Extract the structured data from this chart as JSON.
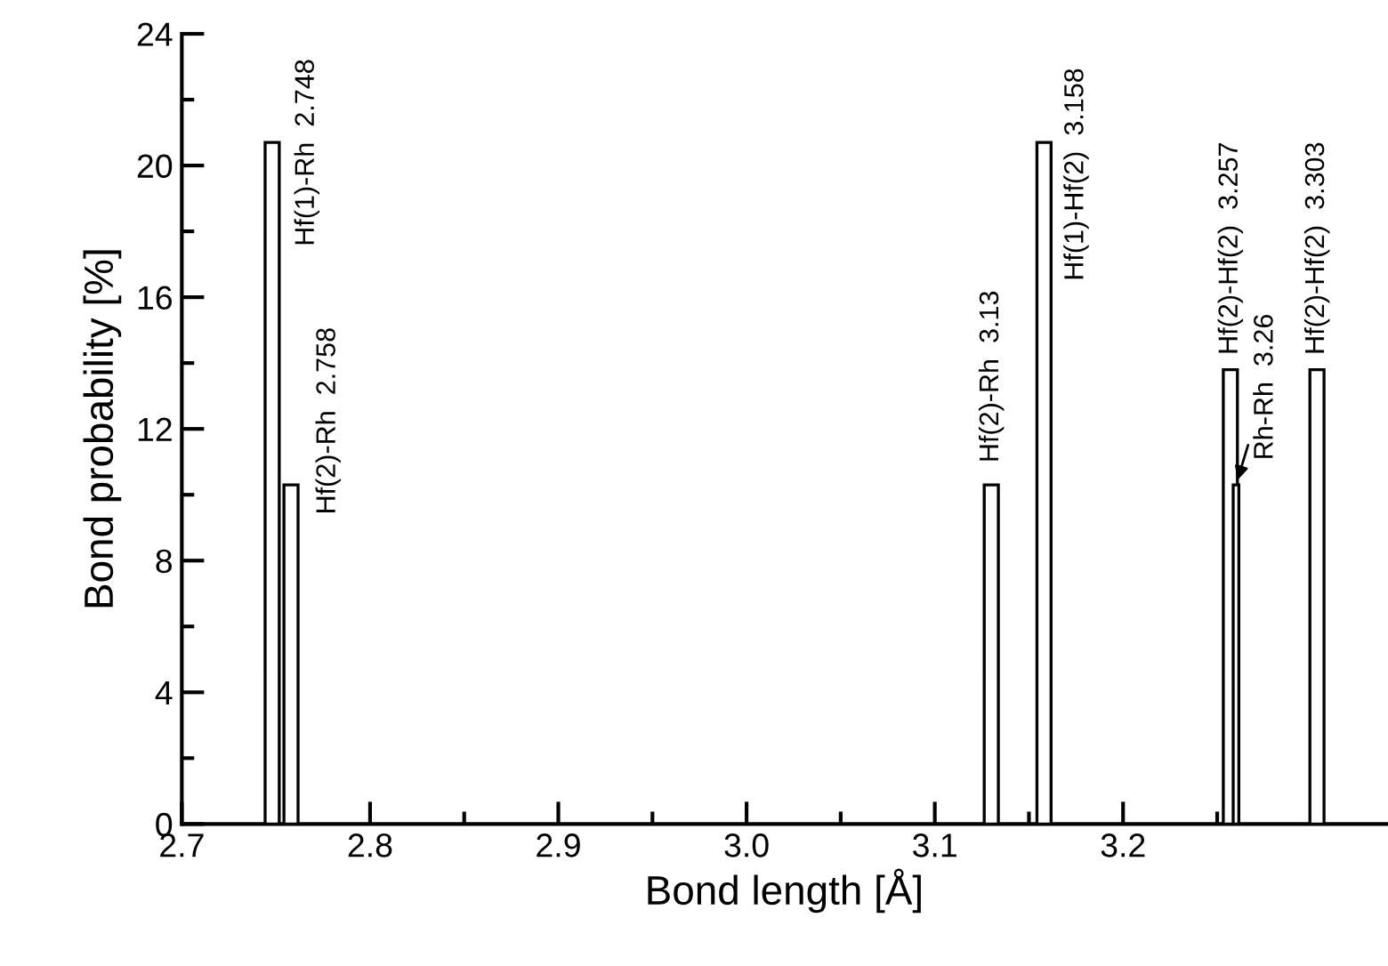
{
  "chart_data": {
    "type": "bar",
    "xlabel": "Bond length [Å]",
    "ylabel": "Bond probability [%]",
    "x": [
      2.748,
      2.758,
      3.13,
      3.158,
      3.257,
      3.26,
      3.303
    ],
    "values": [
      20.7,
      10.3,
      10.3,
      20.7,
      13.8,
      10.3,
      13.8
    ],
    "color": "#ffffff",
    "xlim": [
      2.7,
      3.34
    ],
    "xticks": [
      2.7,
      {
        "value": 2.75,
        "label": null
      },
      2.8,
      {
        "value": 2.85,
        "label": null
      },
      2.9,
      {
        "value": 2.95,
        "label": null
      },
      {
        "value": 3.0,
        "label": "3.0"
      },
      {
        "value": 3.05,
        "label": null
      },
      3.1,
      {
        "value": 3.15,
        "label": null
      },
      3.2,
      {
        "value": 3.25,
        "label": null
      },
      {
        "value": 3.3,
        "label": null
      }
    ],
    "ylim": [
      0,
      24
    ],
    "yticks": [
      0,
      {
        "value": 2,
        "label": null
      },
      4,
      {
        "value": 6,
        "label": null
      },
      8,
      {
        "value": 10,
        "label": null
      },
      12,
      {
        "value": 14,
        "label": null
      },
      16,
      {
        "value": 18,
        "label": null
      },
      20,
      {
        "value": 22,
        "label": null
      },
      24
    ],
    "grid": false,
    "annotations": [
      {
        "text": "Hf(1)-Rh  2.748",
        "x": 2.748,
        "y": 20.7
      },
      {
        "text": "Hf(2)-Rh  2.758",
        "x": 2.758,
        "y": 10.3
      },
      {
        "text": "Hf(2)-Rh  3.13",
        "x": 3.13,
        "y": 10.3
      },
      {
        "text": "Hf(1)-Hf(2)  3.158",
        "x": 3.158,
        "y": 20.7
      },
      {
        "text": "Hf(2)-Hf(2)  3.257",
        "x": 3.257,
        "y": 13.8
      },
      {
        "text": "Rh-Rh  3.26",
        "x": 3.26,
        "y": 10.3
      },
      {
        "text": "Hf(2)-Hf(2)  3.303",
        "x": 3.303,
        "y": 13.8
      }
    ]
  }
}
